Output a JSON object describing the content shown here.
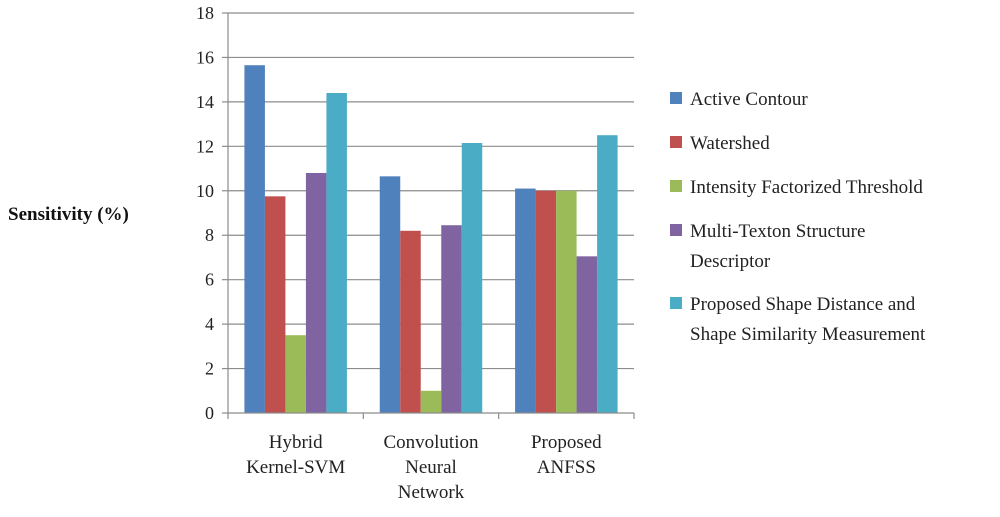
{
  "chart_data": {
    "type": "bar",
    "title": "",
    "xlabel": "",
    "ylabel": "Sensitivity (%)",
    "ylim": [
      0,
      18
    ],
    "yticks": [
      0,
      2,
      4,
      6,
      8,
      10,
      12,
      14,
      16,
      18
    ],
    "grid": true,
    "legend_position": "right",
    "categories": [
      [
        "Hybrid",
        "Kernel-SVM"
      ],
      [
        "Convolution",
        "Neural",
        "Network"
      ],
      [
        "Proposed",
        "ANFSS"
      ]
    ],
    "series": [
      {
        "name": [
          "Active Contour"
        ],
        "color": "#4f81bd",
        "values": [
          15.65,
          10.65,
          10.1
        ]
      },
      {
        "name": [
          "Watershed"
        ],
        "color": "#c0504d",
        "values": [
          9.75,
          8.2,
          10.0
        ]
      },
      {
        "name": [
          "Intensity Factorized Threshold"
        ],
        "color": "#9bbb59",
        "values": [
          3.5,
          1.0,
          10.0
        ]
      },
      {
        "name": [
          "Multi-Texton Structure",
          "Descriptor"
        ],
        "color": "#8064a2",
        "values": [
          10.8,
          8.45,
          7.05
        ]
      },
      {
        "name": [
          "Proposed Shape Distance and",
          "Shape Similarity Measurement"
        ],
        "color": "#4bacc6",
        "values": [
          14.4,
          12.15,
          12.5
        ]
      }
    ]
  }
}
